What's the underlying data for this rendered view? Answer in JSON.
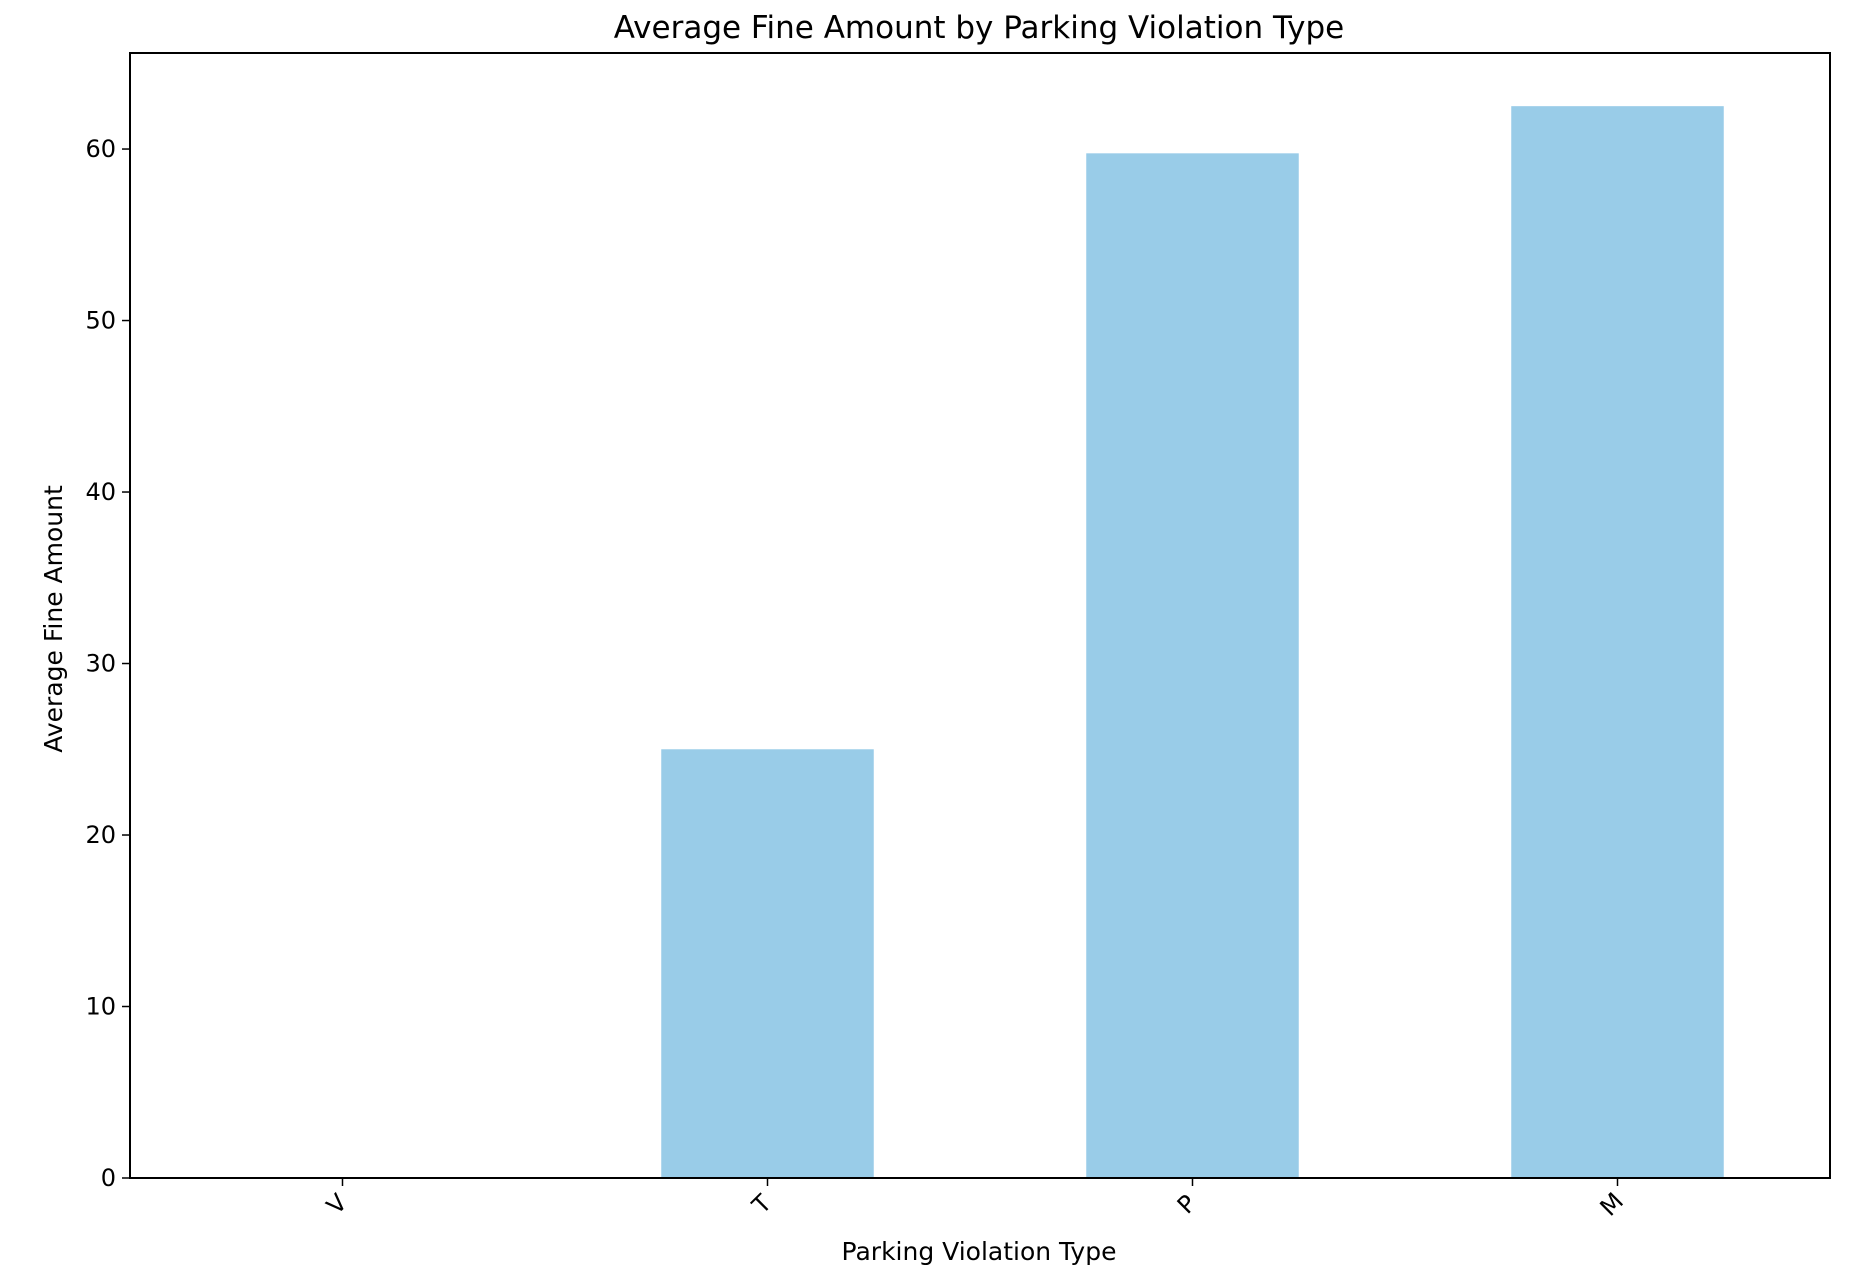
{
  "chart_data": {
    "type": "bar",
    "title": "Average Fine Amount by Parking Violation Type",
    "xlabel": "Parking Violation Type",
    "ylabel": "Average Fine Amount",
    "categories": [
      "V",
      "T",
      "P",
      "M"
    ],
    "values": [
      0,
      25,
      59.75,
      62.5
    ],
    "ylim": [
      0,
      65.6
    ],
    "yticks": [
      0,
      10,
      20,
      30,
      40,
      50,
      60
    ],
    "grid": false,
    "legend": "none",
    "bar_color": "#99cce8"
  }
}
